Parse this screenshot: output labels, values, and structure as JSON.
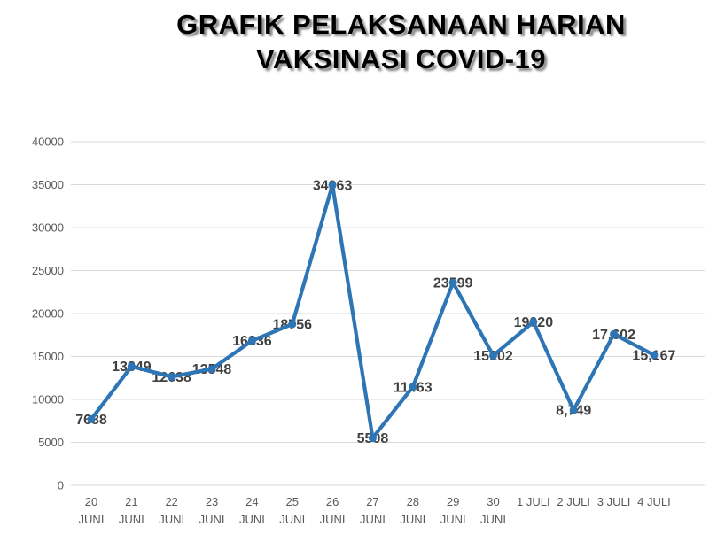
{
  "title": {
    "line1": "GRAFIK PELAKSANAAN HARIAN",
    "line2": "VAKSINASI COVID-19"
  },
  "chart_data": {
    "type": "line",
    "title": "GRAFIK PELAKSANAAN HARIAN VAKSINASI COVID-19",
    "categories": [
      "20 JUNI",
      "21 JUNI",
      "22 JUNI",
      "23 JUNI",
      "24 JUNI",
      "25 JUNI",
      "26 JUNI",
      "27 JUNI",
      "28 JUNI",
      "29 JUNI",
      "30 JUNI",
      "1 JULI",
      "2 JULI",
      "3 JULI",
      "4 JULI"
    ],
    "category_lines": [
      [
        "20",
        "JUNI"
      ],
      [
        "21",
        "JUNI"
      ],
      [
        "22",
        "JUNI"
      ],
      [
        "23",
        "JUNI"
      ],
      [
        "24",
        "JUNI"
      ],
      [
        "25",
        "JUNI"
      ],
      [
        "26",
        "JUNI"
      ],
      [
        "27",
        "JUNI"
      ],
      [
        "28",
        "JUNI"
      ],
      [
        "29",
        "JUNI"
      ],
      [
        "30",
        "JUNI"
      ],
      [
        "1 JULI"
      ],
      [
        "2 JULI"
      ],
      [
        "3 JULI"
      ],
      [
        "4 JULI"
      ]
    ],
    "values": [
      7688,
      13849,
      12638,
      13548,
      16836,
      18756,
      34963,
      5508,
      11463,
      23599,
      15102,
      19020,
      8749,
      17602,
      15167
    ],
    "data_labels": [
      "7688",
      "13849",
      "12638",
      "13548",
      "16836",
      "18756",
      "34963",
      "5508",
      "11463",
      "23599",
      "15102",
      "19020",
      "8,749",
      "17,602",
      "15,167"
    ],
    "xlabel": "",
    "ylabel": "",
    "ylim": [
      0,
      40000
    ],
    "ytick_step": 5000,
    "yticks": [
      "0",
      "5000",
      "10000",
      "15000",
      "20000",
      "25000",
      "30000",
      "35000",
      "40000"
    ],
    "grid": "horizontal",
    "legend": "none",
    "marker": "circle",
    "colors": {
      "line": "#2E75B6",
      "marker": "#2E75B6",
      "data_label": "#404040",
      "axis_text": "#595959",
      "grid_line": "#D9D9D9",
      "background": "#FFFFFF",
      "title_text": "#000000"
    }
  }
}
